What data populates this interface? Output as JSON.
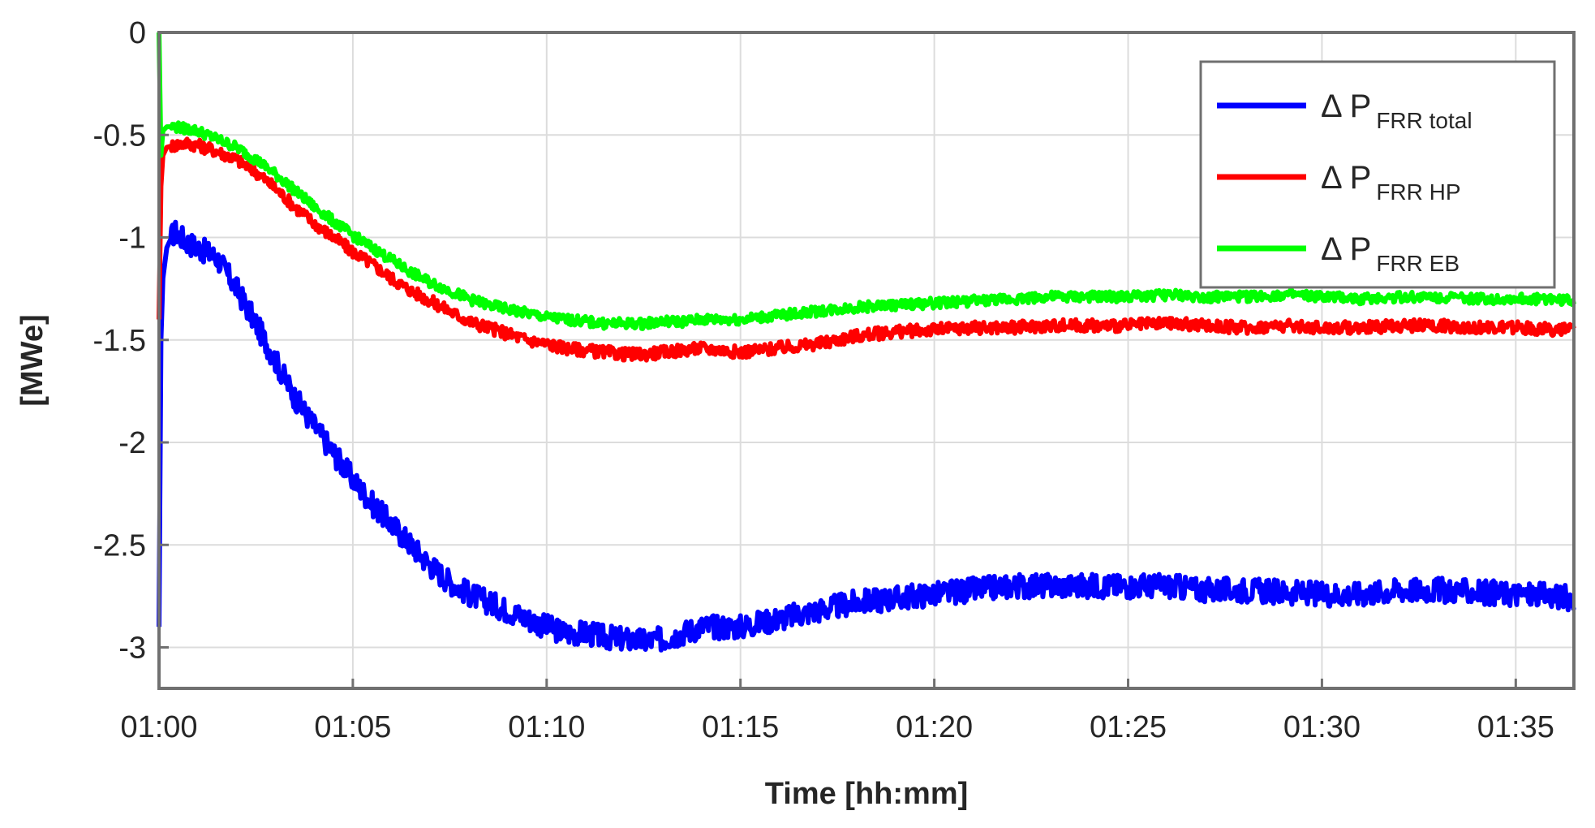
{
  "chart_data": {
    "type": "line",
    "title": "",
    "xlabel": "Time [hh:mm]",
    "ylabel": "[MWe]",
    "x_unit": "minutes after 01:00",
    "xlim": [
      0,
      36.5
    ],
    "ylim": [
      -3.2,
      0
    ],
    "x_ticks": [
      {
        "value": 0,
        "label": "01:00"
      },
      {
        "value": 5,
        "label": "01:05"
      },
      {
        "value": 10,
        "label": "01:10"
      },
      {
        "value": 15,
        "label": "01:15"
      },
      {
        "value": 20,
        "label": "01:20"
      },
      {
        "value": 25,
        "label": "01:25"
      },
      {
        "value": 30,
        "label": "01:30"
      },
      {
        "value": 35,
        "label": "01:35"
      }
    ],
    "y_ticks": [
      {
        "value": 0,
        "label": "0"
      },
      {
        "value": -0.5,
        "label": "-0.5"
      },
      {
        "value": -1,
        "label": "-1"
      },
      {
        "value": -1.5,
        "label": "-1.5"
      },
      {
        "value": -2,
        "label": "-2"
      },
      {
        "value": -2.5,
        "label": "-2.5"
      },
      {
        "value": -3,
        "label": "-3"
      }
    ],
    "grid": true,
    "legend_position": "top-right",
    "series": [
      {
        "name": "Δ P",
        "name_sub": "FRR total",
        "color": "#0000ff",
        "x": [
          0,
          0.05,
          0.1,
          0.2,
          0.4,
          0.7,
          1,
          1.5,
          2,
          2.5,
          3,
          3.5,
          4,
          4.5,
          5,
          5.5,
          6,
          6.5,
          7,
          7.5,
          8,
          8.5,
          9,
          9.5,
          10,
          10.5,
          11,
          11.5,
          12,
          12.5,
          13,
          13.5,
          14,
          14.5,
          15,
          15.5,
          16,
          16.5,
          17,
          17.5,
          18,
          19,
          20,
          21,
          22,
          23,
          24,
          25,
          26,
          27,
          28,
          29,
          30,
          31,
          32,
          33,
          34,
          35,
          36,
          36.5
        ],
        "y": [
          -2.9,
          -1.5,
          -1.2,
          -1.05,
          -0.97,
          -1.02,
          -1.05,
          -1.1,
          -1.25,
          -1.42,
          -1.6,
          -1.78,
          -1.92,
          -2.05,
          -2.18,
          -2.3,
          -2.4,
          -2.5,
          -2.6,
          -2.68,
          -2.74,
          -2.78,
          -2.82,
          -2.86,
          -2.9,
          -2.93,
          -2.93,
          -2.95,
          -2.96,
          -2.97,
          -2.96,
          -2.93,
          -2.9,
          -2.9,
          -2.9,
          -2.88,
          -2.86,
          -2.84,
          -2.82,
          -2.8,
          -2.78,
          -2.76,
          -2.74,
          -2.72,
          -2.7,
          -2.7,
          -2.7,
          -2.7,
          -2.7,
          -2.72,
          -2.72,
          -2.73,
          -2.74,
          -2.74,
          -2.72,
          -2.72,
          -2.73,
          -2.74,
          -2.75,
          -2.76
        ]
      },
      {
        "name": "Δ P",
        "name_sub": "FRR HP",
        "color": "#ff0000",
        "x": [
          0,
          0.05,
          0.1,
          0.2,
          0.4,
          0.7,
          1,
          1.5,
          2,
          2.5,
          3,
          3.5,
          4,
          4.5,
          5,
          5.5,
          6,
          6.5,
          7,
          7.5,
          8,
          8.5,
          9,
          9.5,
          10,
          10.5,
          11,
          11.5,
          12,
          12.5,
          13,
          13.5,
          14,
          14.5,
          15,
          15.5,
          16,
          16.5,
          17,
          17.5,
          18,
          19,
          20,
          21,
          22,
          23,
          24,
          25,
          26,
          27,
          28,
          29,
          30,
          31,
          32,
          33,
          34,
          35,
          36,
          36.5
        ],
        "y": [
          -1.4,
          -0.75,
          -0.6,
          -0.56,
          -0.55,
          -0.54,
          -0.55,
          -0.58,
          -0.62,
          -0.68,
          -0.76,
          -0.85,
          -0.93,
          -1.0,
          -1.07,
          -1.13,
          -1.2,
          -1.26,
          -1.31,
          -1.36,
          -1.41,
          -1.44,
          -1.47,
          -1.5,
          -1.52,
          -1.54,
          -1.55,
          -1.56,
          -1.57,
          -1.57,
          -1.56,
          -1.55,
          -1.54,
          -1.55,
          -1.56,
          -1.55,
          -1.54,
          -1.53,
          -1.52,
          -1.5,
          -1.48,
          -1.46,
          -1.45,
          -1.44,
          -1.44,
          -1.43,
          -1.43,
          -1.43,
          -1.42,
          -1.43,
          -1.44,
          -1.43,
          -1.44,
          -1.44,
          -1.43,
          -1.43,
          -1.44,
          -1.44,
          -1.45,
          -1.45
        ]
      },
      {
        "name": "Δ P",
        "name_sub": "FRR EB",
        "color": "#00ff00",
        "x": [
          0,
          0.05,
          0.1,
          0.2,
          0.4,
          0.7,
          1,
          1.5,
          2,
          2.5,
          3,
          3.5,
          4,
          4.5,
          5,
          5.5,
          6,
          6.5,
          7,
          7.5,
          8,
          8.5,
          9,
          9.5,
          10,
          10.5,
          11,
          11.5,
          12,
          12.5,
          13,
          13.5,
          14,
          14.5,
          15,
          15.5,
          16,
          16.5,
          17,
          17.5,
          18,
          19,
          20,
          21,
          22,
          23,
          24,
          25,
          26,
          27,
          28,
          29,
          30,
          31,
          32,
          33,
          34,
          35,
          36,
          36.5
        ],
        "y": [
          0,
          -0.6,
          -0.48,
          -0.46,
          -0.46,
          -0.47,
          -0.48,
          -0.52,
          -0.56,
          -0.62,
          -0.69,
          -0.77,
          -0.85,
          -0.92,
          -0.99,
          -1.05,
          -1.11,
          -1.17,
          -1.22,
          -1.26,
          -1.3,
          -1.33,
          -1.35,
          -1.37,
          -1.39,
          -1.4,
          -1.41,
          -1.42,
          -1.42,
          -1.42,
          -1.41,
          -1.41,
          -1.4,
          -1.4,
          -1.4,
          -1.39,
          -1.38,
          -1.37,
          -1.36,
          -1.35,
          -1.34,
          -1.33,
          -1.32,
          -1.31,
          -1.3,
          -1.29,
          -1.29,
          -1.29,
          -1.28,
          -1.29,
          -1.29,
          -1.28,
          -1.29,
          -1.3,
          -1.29,
          -1.29,
          -1.3,
          -1.3,
          -1.3,
          -1.31
        ]
      }
    ]
  }
}
